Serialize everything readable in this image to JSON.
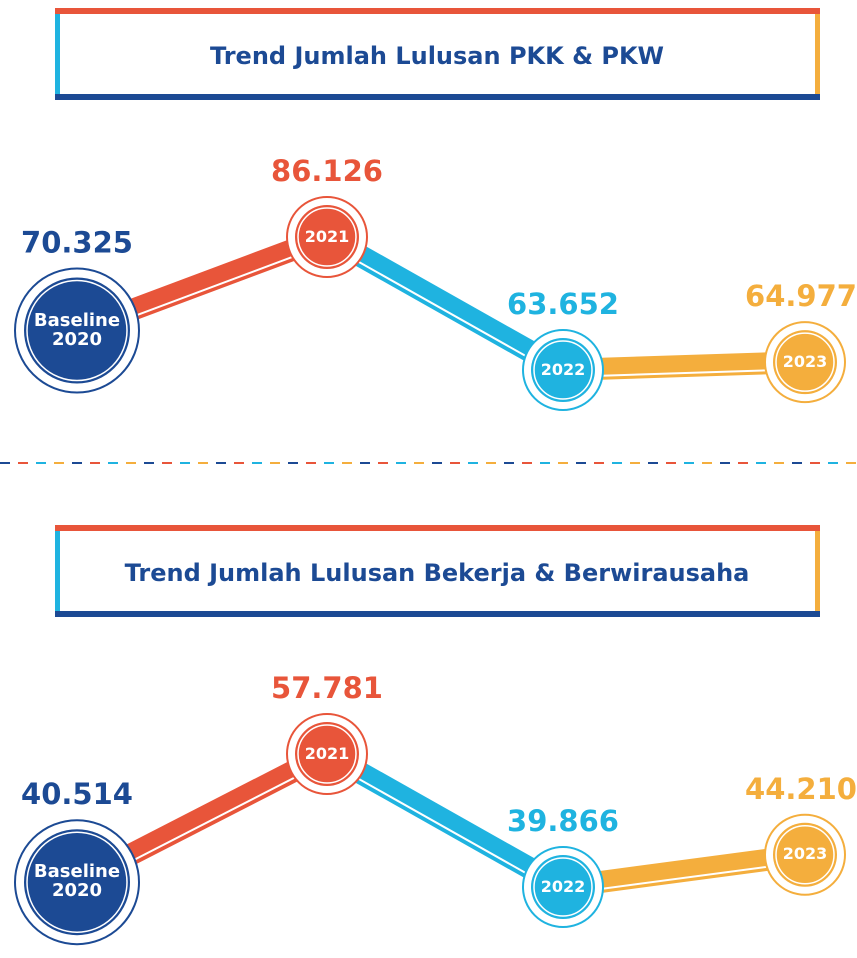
{
  "chart_data": [
    {
      "type": "line",
      "title": "Trend Jumlah Lulusan PKK & PKW",
      "categories": [
        "Baseline 2020",
        "2021",
        "2022",
        "2023"
      ],
      "values": [
        70325,
        86126,
        63652,
        64977
      ],
      "value_labels": [
        "70.325",
        "86.126",
        "63.652",
        "64.977"
      ],
      "colors": [
        "#1c4a94",
        "#e8553a",
        "#1fb3e0",
        "#f4ae3d"
      ]
    },
    {
      "type": "line",
      "title": "Trend Jumlah Lulusan Bekerja & Berwirausaha",
      "categories": [
        "Baseline 2020",
        "2021",
        "2022",
        "2023"
      ],
      "values": [
        40514,
        57781,
        39866,
        44210
      ],
      "value_labels": [
        "40.514",
        "57.781",
        "39.866",
        "44.210"
      ],
      "colors": [
        "#1c4a94",
        "#e8553a",
        "#1fb3e0",
        "#f4ae3d"
      ]
    }
  ]
}
